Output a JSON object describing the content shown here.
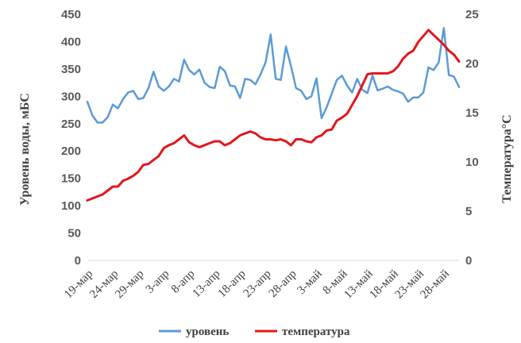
{
  "chart_data": {
    "type": "line",
    "x": [
      "19-мар",
      "20-мар",
      "21-мар",
      "22-мар",
      "23-мар",
      "24-мар",
      "25-мар",
      "26-мар",
      "27-мар",
      "28-мар",
      "29-мар",
      "30-мар",
      "31-мар",
      "1-апр",
      "2-апр",
      "3-апр",
      "4-апр",
      "5-апр",
      "6-апр",
      "7-апр",
      "8-апр",
      "9-апр",
      "10-апр",
      "11-апр",
      "12-апр",
      "13-апр",
      "14-апр",
      "15-апр",
      "16-апр",
      "17-апр",
      "18-апр",
      "19-апр",
      "20-апр",
      "21-апр",
      "22-апр",
      "23-апр",
      "24-апр",
      "25-апр",
      "26-апр",
      "27-апр",
      "28-апр",
      "29-апр",
      "30-апр",
      "1-май",
      "2-май",
      "3-май",
      "4-май",
      "5-май",
      "6-май",
      "7-май",
      "8-май",
      "9-май",
      "10-май",
      "11-май",
      "12-май",
      "13-май",
      "14-май",
      "15-май",
      "16-май",
      "17-май",
      "18-май",
      "19-май",
      "20-май",
      "21-май",
      "22-май",
      "23-май",
      "24-май",
      "25-май",
      "26-май",
      "27-май",
      "28-май",
      "29-май",
      "30-май",
      "31-май"
    ],
    "x_tick_labels": [
      "19-мар",
      "24-мар",
      "29-мар",
      "3-апр",
      "8-апр",
      "13-апр",
      "18-апр",
      "23-апр",
      "28-апр",
      "3-май",
      "8-май",
      "13-май",
      "18-май",
      "23-май",
      "28-май"
    ],
    "series": [
      {
        "name": "уровень",
        "axis": "left",
        "color": "#5B9BD5",
        "values": [
          290,
          265,
          252,
          252,
          262,
          285,
          278,
          295,
          307,
          310,
          295,
          297,
          315,
          345,
          318,
          310,
          318,
          332,
          327,
          367,
          348,
          340,
          349,
          325,
          317,
          315,
          354,
          346,
          320,
          318,
          297,
          332,
          330,
          322,
          340,
          362,
          413,
          332,
          330,
          391,
          355,
          315,
          310,
          295,
          300,
          333,
          260,
          280,
          305,
          330,
          338,
          320,
          307,
          332,
          312,
          306,
          338,
          311,
          314,
          318,
          312,
          309,
          305,
          290,
          298,
          298,
          307,
          353,
          348,
          362,
          425,
          339,
          336,
          317
        ]
      },
      {
        "name": "температура",
        "axis": "right",
        "color": "#E3161B",
        "values": [
          6.1,
          6.3,
          6.5,
          6.7,
          7.1,
          7.5,
          7.5,
          8.1,
          8.3,
          8.6,
          9.0,
          9.7,
          9.8,
          10.2,
          10.6,
          11.4,
          11.7,
          11.9,
          12.3,
          12.7,
          12.0,
          11.7,
          11.5,
          11.7,
          11.9,
          12.1,
          12.1,
          11.7,
          11.9,
          12.3,
          12.7,
          12.9,
          13.1,
          12.9,
          12.5,
          12.3,
          12.3,
          12.2,
          12.3,
          12.1,
          11.7,
          12.3,
          12.3,
          12.1,
          12.0,
          12.5,
          12.7,
          13.2,
          13.3,
          14.2,
          14.5,
          14.9,
          15.8,
          16.7,
          17.8,
          18.9,
          19.0,
          19.0,
          19.0,
          19.0,
          19.2,
          19.7,
          20.5,
          21.0,
          21.3,
          22.2,
          22.8,
          23.4,
          22.9,
          22.4,
          21.9,
          21.3,
          20.9,
          20.2
        ]
      }
    ],
    "y_left": {
      "label": "Уровень воды, мБС",
      "min": 0,
      "max": 450,
      "step": 50
    },
    "y_right": {
      "label": "Температура°С",
      "min": 0,
      "max": 25,
      "step": 5
    },
    "grid": false,
    "legend_position": "bottom"
  }
}
